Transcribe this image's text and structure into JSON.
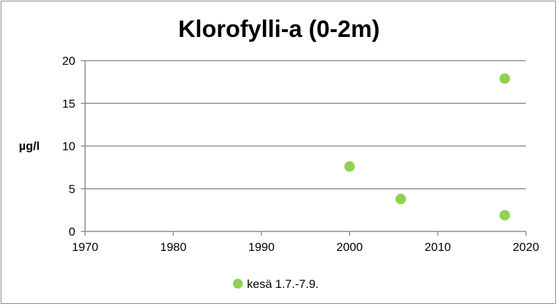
{
  "chart_data": {
    "type": "scatter",
    "title": "Klorofylli-a (0-2m)",
    "xlabel": "",
    "ylabel": "µg/l",
    "xlim": [
      1970,
      2020
    ],
    "ylim": [
      0,
      20
    ],
    "xticks": [
      1970,
      1980,
      1990,
      2000,
      2010,
      2020
    ],
    "yticks": [
      0,
      5,
      10,
      15,
      20
    ],
    "grid": "horizontal",
    "legend": "bottom",
    "series": [
      {
        "name": "kesä 1.7.-7.9.",
        "color": "#92d050",
        "points": [
          {
            "x": 2000,
            "y": 7.6
          },
          {
            "x": 2005.8,
            "y": 3.8
          },
          {
            "x": 2017.6,
            "y": 17.9
          },
          {
            "x": 2017.6,
            "y": 1.9
          }
        ]
      }
    ]
  }
}
